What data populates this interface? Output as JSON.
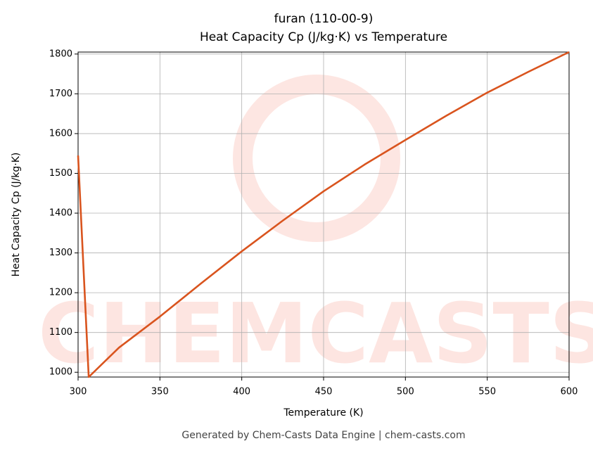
{
  "chart_data": {
    "type": "line",
    "title": "furan (110-00-9)",
    "subtitle": "Heat Capacity Cp (J/kg·K) vs Temperature",
    "xlabel": "Temperature (K)",
    "ylabel": "Heat Capacity Cp (J/kg·K)",
    "footer": "Generated by Chem-Casts Data Engine | chem-casts.com",
    "watermark": "CHEMCASTS",
    "x": [
      300,
      306.5,
      325,
      350,
      375,
      400,
      425,
      450,
      475,
      500,
      525,
      550,
      575,
      600
    ],
    "series": [
      {
        "name": "Cp",
        "color": "#d9541e",
        "values": [
          1545,
          988,
          1062,
          1140,
          1223,
          1304,
          1381,
          1455,
          1522,
          1584,
          1645,
          1703,
          1755,
          1805
        ]
      }
    ],
    "xlim": [
      300,
      600
    ],
    "xticks": [
      300,
      350,
      400,
      450,
      500,
      550,
      600
    ],
    "ylim": [
      988,
      1805
    ],
    "yticks": [
      1000,
      1100,
      1200,
      1300,
      1400,
      1500,
      1600,
      1700,
      1800
    ],
    "grid": true
  }
}
